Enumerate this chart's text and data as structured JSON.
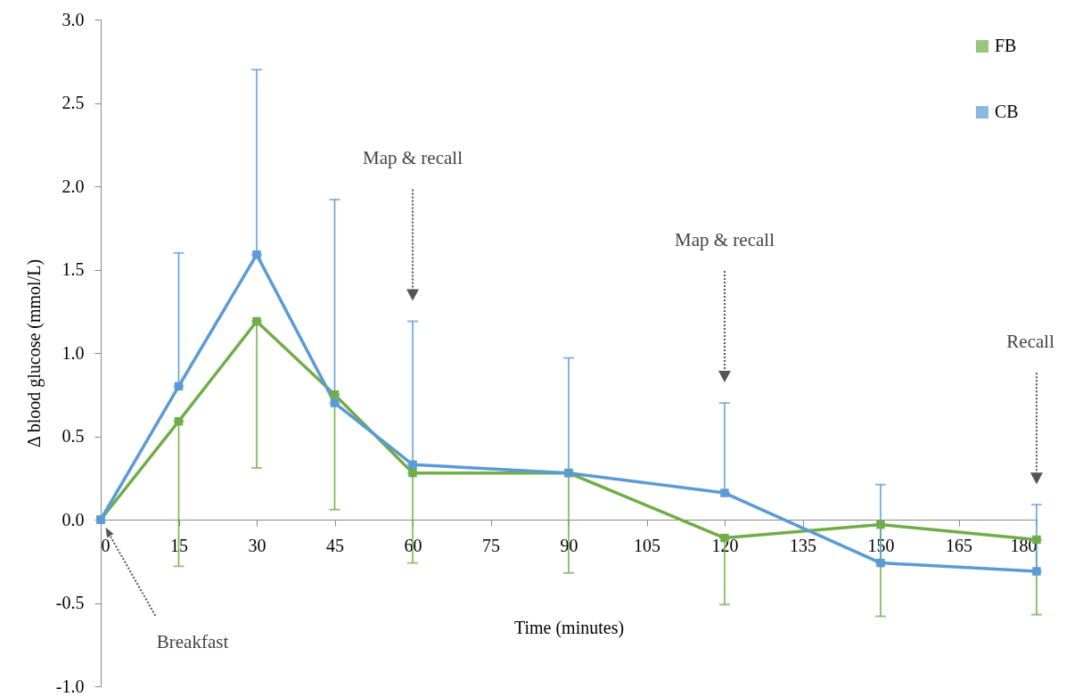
{
  "chart_data": {
    "type": "line",
    "xlabel": "Time (minutes)",
    "ylabel": "Δ blood glucose (mmol/L)",
    "x": [
      0,
      15,
      30,
      45,
      60,
      90,
      120,
      150,
      180
    ],
    "series": [
      {
        "name": "FB",
        "color": "#70ad47",
        "values": [
          0,
          0.59,
          1.19,
          0.75,
          0.28,
          0.28,
          -0.11,
          -0.03,
          -0.12
        ],
        "errors": [
          null,
          [
            -0.28,
            0.59
          ],
          [
            0.31,
            1.19
          ],
          [
            0.06,
            0.75
          ],
          [
            -0.26,
            0.28
          ],
          [
            -0.32,
            0.28
          ],
          [
            -0.51,
            -0.11
          ],
          [
            -0.58,
            -0.03
          ],
          [
            -0.57,
            -0.12
          ]
        ]
      },
      {
        "name": "CB",
        "color": "#5b9bd5",
        "values": [
          0,
          0.8,
          1.59,
          0.7,
          0.33,
          0.28,
          0.16,
          -0.26,
          -0.31
        ],
        "errors": [
          null,
          [
            0.8,
            1.6
          ],
          [
            1.59,
            2.7
          ],
          [
            0.7,
            1.92
          ],
          [
            0.33,
            1.19
          ],
          [
            0.28,
            0.97
          ],
          [
            0.16,
            0.7
          ],
          [
            -0.26,
            0.21
          ],
          [
            -0.31,
            0.09
          ]
        ]
      }
    ],
    "xlim": [
      0,
      180
    ],
    "xticks": [
      0,
      15,
      30,
      45,
      60,
      75,
      90,
      105,
      120,
      135,
      150,
      165,
      180
    ],
    "ylim": [
      -1,
      3
    ],
    "yticks": [
      {
        "value": -1,
        "label": "-1.0"
      },
      -0.5,
      {
        "value": 0,
        "label": "0.0"
      },
      0.5,
      {
        "value": 1,
        "label": "1.0"
      },
      1.5,
      {
        "value": 2,
        "label": "2.0"
      },
      2.5,
      {
        "value": 3,
        "label": "3.0"
      }
    ],
    "annotations": [
      "Breakfast",
      {
        "text": "Map & recall",
        "x": 60
      },
      {
        "text": "Map & recall",
        "x": 120
      },
      {
        "text": "Recall",
        "x": 180
      }
    ],
    "legend": "top right",
    "marker": "square",
    "line_style": "solid"
  }
}
